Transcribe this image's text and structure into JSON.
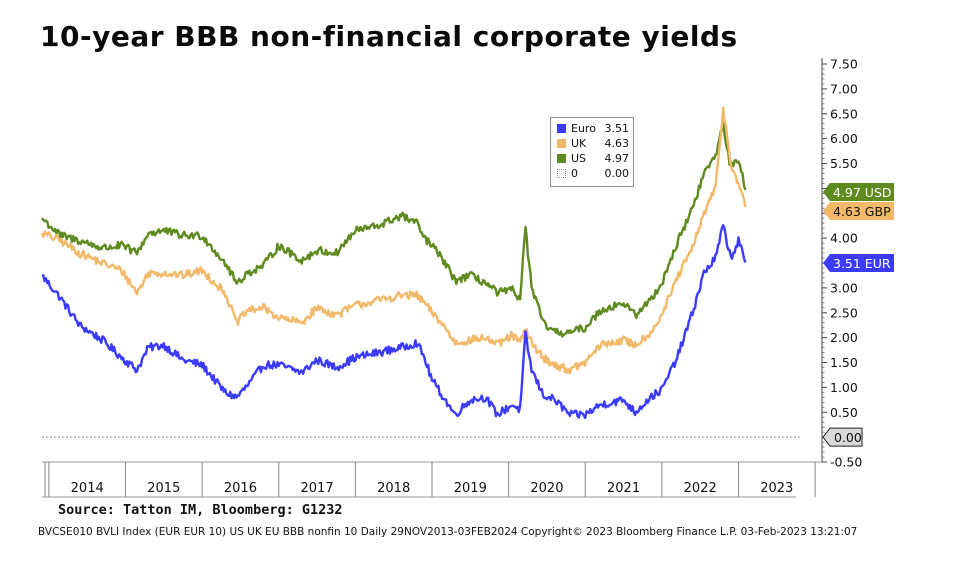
{
  "title": "10-year BBB non-financial corporate yields",
  "source": "Source: Tatton IM, Bloomberg: G1232",
  "footer": "BVCSE010 BVLI Index (EUR EUR 10) US UK EU BBB nonfin 10  Daily 29NOV2013-03FEB2024 Copyright© 2023 Bloomberg Finance L.P. 03-Feb-2023 13:21:07",
  "legend": [
    {
      "name": "Euro",
      "value": "3.51",
      "color": "#3b3bff",
      "style": "solid"
    },
    {
      "name": "UK",
      "value": "4.63",
      "color": "#f2b96a",
      "style": "solid"
    },
    {
      "name": "US",
      "value": "4.97",
      "color": "#5f8a1f",
      "style": "solid"
    },
    {
      "name": "0",
      "value": "0.00",
      "color": "#888888",
      "style": "dotted"
    }
  ],
  "chart_data": {
    "type": "line",
    "title": "10-year BBB non-financial corporate yields",
    "x_range": [
      2013.91,
      2024.09
    ],
    "ylim": [
      -0.5,
      7.5
    ],
    "y_ticks": [
      "7.50",
      "7.00",
      "6.50",
      "6.00",
      "5.50",
      "5.00",
      "4.50",
      "4.00",
      "3.50",
      "3.00",
      "2.50",
      "2.00",
      "1.50",
      "1.00",
      "0.50",
      "0.00",
      "-0.50"
    ],
    "x_tick_labels": [
      "2014",
      "2015",
      "2016",
      "2017",
      "2018",
      "2019",
      "2020",
      "2021",
      "2022",
      "2023"
    ],
    "reference_line": {
      "value": 0,
      "label": "0.00",
      "style": "dotted"
    },
    "series": [
      {
        "name": "Euro",
        "color": "#3b3bff",
        "last_label": "3.51 EUR",
        "points": [
          [
            2013.91,
            3.25
          ],
          [
            2014.15,
            2.8
          ],
          [
            2014.4,
            2.25
          ],
          [
            2014.7,
            1.95
          ],
          [
            2014.95,
            1.6
          ],
          [
            2015.15,
            1.35
          ],
          [
            2015.3,
            1.8
          ],
          [
            2015.5,
            1.85
          ],
          [
            2015.75,
            1.55
          ],
          [
            2016.0,
            1.45
          ],
          [
            2016.3,
            0.9
          ],
          [
            2016.45,
            0.8
          ],
          [
            2016.6,
            1.05
          ],
          [
            2016.8,
            1.45
          ],
          [
            2017.0,
            1.45
          ],
          [
            2017.3,
            1.3
          ],
          [
            2017.5,
            1.55
          ],
          [
            2017.75,
            1.4
          ],
          [
            2018.0,
            1.6
          ],
          [
            2018.3,
            1.7
          ],
          [
            2018.6,
            1.8
          ],
          [
            2018.8,
            1.9
          ],
          [
            2018.9,
            1.6
          ],
          [
            2019.0,
            1.15
          ],
          [
            2019.15,
            0.8
          ],
          [
            2019.3,
            0.45
          ],
          [
            2019.5,
            0.75
          ],
          [
            2019.7,
            0.8
          ],
          [
            2019.85,
            0.45
          ],
          [
            2020.05,
            0.65
          ],
          [
            2020.15,
            0.55
          ],
          [
            2020.22,
            2.05
          ],
          [
            2020.3,
            1.35
          ],
          [
            2020.45,
            0.85
          ],
          [
            2020.6,
            0.75
          ],
          [
            2020.8,
            0.45
          ],
          [
            2021.0,
            0.45
          ],
          [
            2021.2,
            0.65
          ],
          [
            2021.5,
            0.75
          ],
          [
            2021.65,
            0.5
          ],
          [
            2021.85,
            0.8
          ],
          [
            2022.0,
            0.95
          ],
          [
            2022.2,
            1.6
          ],
          [
            2022.4,
            2.5
          ],
          [
            2022.55,
            3.3
          ],
          [
            2022.7,
            3.6
          ],
          [
            2022.8,
            4.25
          ],
          [
            2022.9,
            3.6
          ],
          [
            2023.0,
            3.95
          ],
          [
            2023.09,
            3.51
          ]
        ]
      },
      {
        "name": "UK",
        "color": "#f2b96a",
        "last_label": "4.63 GBP",
        "points": [
          [
            2013.91,
            4.1
          ],
          [
            2014.15,
            3.95
          ],
          [
            2014.4,
            3.7
          ],
          [
            2014.7,
            3.5
          ],
          [
            2014.95,
            3.35
          ],
          [
            2015.15,
            2.9
          ],
          [
            2015.3,
            3.3
          ],
          [
            2015.5,
            3.3
          ],
          [
            2015.75,
            3.25
          ],
          [
            2016.0,
            3.35
          ],
          [
            2016.3,
            2.9
          ],
          [
            2016.45,
            2.3
          ],
          [
            2016.6,
            2.55
          ],
          [
            2016.8,
            2.6
          ],
          [
            2017.0,
            2.4
          ],
          [
            2017.3,
            2.3
          ],
          [
            2017.5,
            2.6
          ],
          [
            2017.75,
            2.45
          ],
          [
            2018.0,
            2.65
          ],
          [
            2018.3,
            2.75
          ],
          [
            2018.6,
            2.85
          ],
          [
            2018.8,
            2.85
          ],
          [
            2018.9,
            2.7
          ],
          [
            2019.0,
            2.5
          ],
          [
            2019.15,
            2.25
          ],
          [
            2019.3,
            1.9
          ],
          [
            2019.5,
            1.95
          ],
          [
            2019.7,
            2.0
          ],
          [
            2019.85,
            1.85
          ],
          [
            2020.05,
            2.05
          ],
          [
            2020.15,
            1.9
          ],
          [
            2020.22,
            2.15
          ],
          [
            2020.3,
            1.9
          ],
          [
            2020.45,
            1.6
          ],
          [
            2020.6,
            1.45
          ],
          [
            2020.8,
            1.35
          ],
          [
            2021.0,
            1.5
          ],
          [
            2021.2,
            1.85
          ],
          [
            2021.5,
            1.95
          ],
          [
            2021.65,
            1.85
          ],
          [
            2021.85,
            2.1
          ],
          [
            2022.0,
            2.45
          ],
          [
            2022.2,
            3.2
          ],
          [
            2022.4,
            3.8
          ],
          [
            2022.55,
            4.5
          ],
          [
            2022.7,
            5.0
          ],
          [
            2022.8,
            6.6
          ],
          [
            2022.9,
            5.5
          ],
          [
            2023.0,
            5.1
          ],
          [
            2023.09,
            4.63
          ]
        ]
      },
      {
        "name": "US",
        "color": "#5f8a1f",
        "last_label": "4.97 USD",
        "points": [
          [
            2013.91,
            4.4
          ],
          [
            2014.15,
            4.05
          ],
          [
            2014.4,
            3.95
          ],
          [
            2014.7,
            3.8
          ],
          [
            2014.95,
            3.85
          ],
          [
            2015.15,
            3.7
          ],
          [
            2015.3,
            4.1
          ],
          [
            2015.5,
            4.15
          ],
          [
            2015.75,
            4.05
          ],
          [
            2016.0,
            4.05
          ],
          [
            2016.3,
            3.5
          ],
          [
            2016.45,
            3.1
          ],
          [
            2016.6,
            3.3
          ],
          [
            2016.8,
            3.45
          ],
          [
            2017.0,
            3.85
          ],
          [
            2017.3,
            3.55
          ],
          [
            2017.5,
            3.75
          ],
          [
            2017.75,
            3.7
          ],
          [
            2018.0,
            4.15
          ],
          [
            2018.3,
            4.25
          ],
          [
            2018.6,
            4.45
          ],
          [
            2018.8,
            4.3
          ],
          [
            2018.9,
            4.0
          ],
          [
            2019.0,
            3.85
          ],
          [
            2019.15,
            3.55
          ],
          [
            2019.3,
            3.15
          ],
          [
            2019.5,
            3.25
          ],
          [
            2019.7,
            3.1
          ],
          [
            2019.85,
            2.9
          ],
          [
            2020.05,
            2.95
          ],
          [
            2020.15,
            2.8
          ],
          [
            2020.22,
            4.2
          ],
          [
            2020.3,
            3.0
          ],
          [
            2020.45,
            2.3
          ],
          [
            2020.6,
            2.1
          ],
          [
            2020.8,
            2.1
          ],
          [
            2021.0,
            2.2
          ],
          [
            2021.2,
            2.55
          ],
          [
            2021.5,
            2.7
          ],
          [
            2021.65,
            2.45
          ],
          [
            2021.85,
            2.75
          ],
          [
            2022.0,
            3.1
          ],
          [
            2022.2,
            3.9
          ],
          [
            2022.4,
            4.6
          ],
          [
            2022.55,
            5.3
          ],
          [
            2022.7,
            5.65
          ],
          [
            2022.8,
            6.3
          ],
          [
            2022.9,
            5.4
          ],
          [
            2023.0,
            5.6
          ],
          [
            2023.09,
            4.97
          ]
        ]
      }
    ]
  }
}
